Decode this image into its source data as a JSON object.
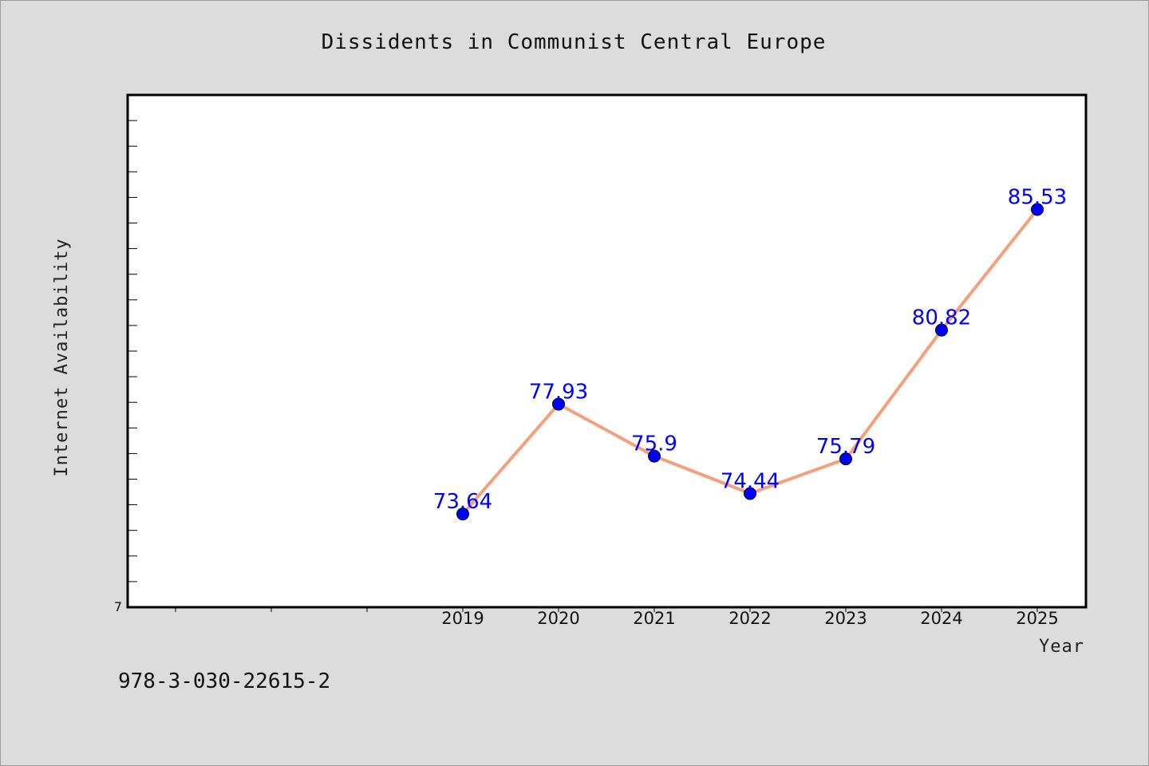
{
  "chart_data": {
    "type": "line",
    "title": "Dissidents in Communist Central Europe",
    "xlabel": "Year",
    "ylabel": "Internet Availability",
    "categories": [
      "2019",
      "2020",
      "2021",
      "2022",
      "2023",
      "2024",
      "2025"
    ],
    "series": [
      {
        "values": [
          73.64,
          77.93,
          75.9,
          74.44,
          75.79,
          80.82,
          85.53
        ],
        "labels": [
          "73.64",
          "77.93",
          "75.9",
          "74.44",
          "75.79",
          "80.82",
          "85.53"
        ],
        "line_color": "#f4a07c",
        "marker_color": "#0000ff"
      }
    ],
    "ylim": [
      70,
      90
    ],
    "y_tick_labels": [
      "7"
    ],
    "grid": false,
    "legend": "none"
  },
  "footer": {
    "isbn": "978-3-030-22615-2"
  }
}
